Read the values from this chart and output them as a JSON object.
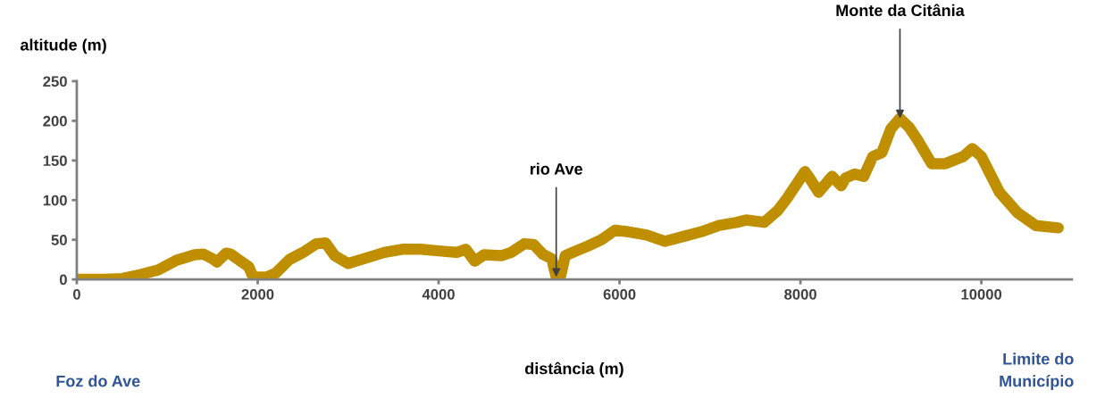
{
  "chart_data": {
    "type": "line",
    "xlabel": "distância (m)",
    "ylabel": "altitude (m)",
    "x": [
      0,
      300,
      500,
      700,
      900,
      1100,
      1300,
      1400,
      1500,
      1550,
      1650,
      1700,
      1800,
      1900,
      1950,
      2100,
      2200,
      2350,
      2500,
      2650,
      2750,
      2850,
      3000,
      3200,
      3400,
      3600,
      3800,
      4000,
      4200,
      4300,
      4400,
      4500,
      4700,
      4800,
      4950,
      5050,
      5150,
      5250,
      5300,
      5350,
      5400,
      5500,
      5650,
      5800,
      5950,
      6100,
      6300,
      6500,
      6700,
      6900,
      7100,
      7300,
      7400,
      7600,
      7750,
      7850,
      8050,
      8100,
      8200,
      8350,
      8450,
      8500,
      8600,
      8700,
      8800,
      8900,
      9000,
      9100,
      9200,
      9300,
      9450,
      9600,
      9800,
      9900,
      10000,
      10200,
      10400,
      10600,
      10850
    ],
    "series": [
      {
        "color": "#bf8f00",
        "values": [
          0,
          0,
          1,
          6,
          12,
          24,
          31,
          32,
          26,
          22,
          33,
          32,
          24,
          16,
          3,
          3,
          8,
          25,
          34,
          45,
          46,
          30,
          20,
          27,
          34,
          38,
          38,
          36,
          34,
          38,
          23,
          31,
          30,
          34,
          45,
          44,
          32,
          26,
          3,
          5,
          30,
          35,
          42,
          50,
          62,
          60,
          56,
          48,
          54,
          60,
          68,
          72,
          75,
          72,
          87,
          102,
          136,
          128,
          110,
          130,
          118,
          128,
          133,
          130,
          155,
          160,
          190,
          203,
          192,
          175,
          146,
          146,
          155,
          165,
          155,
          110,
          84,
          68,
          65
        ]
      }
    ],
    "xlim": [
      0,
      11000
    ],
    "xticks": [
      0,
      2000,
      4000,
      6000,
      8000,
      10000
    ],
    "ylim": [
      0,
      250
    ],
    "yticks": [
      0,
      50,
      100,
      150,
      200,
      250
    ],
    "grid": false,
    "legend": false,
    "line_style": "solid",
    "annotations": [
      {
        "text": "rio Ave",
        "x": 5300,
        "y": 3
      },
      {
        "text": "Monte da Citânia",
        "x": 9100,
        "y": 203
      },
      "Foz do Ave",
      "Limite do\nMunicípio"
    ]
  }
}
